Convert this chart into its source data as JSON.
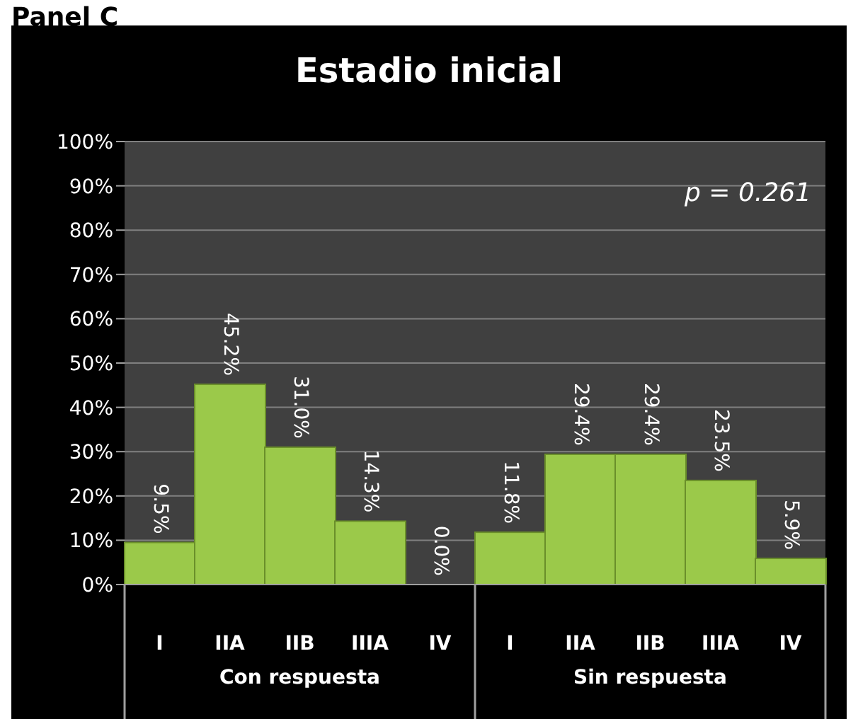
{
  "chart_data": {
    "type": "bar",
    "title": "Estadio inicial",
    "categories": [
      "I",
      "IIA",
      "IIB",
      "IIIA",
      "IV",
      "I",
      "IIA",
      "IIB",
      "IIIA",
      "IV"
    ],
    "values": [
      9.5,
      45.2,
      31.0,
      14.3,
      0.0,
      11.8,
      29.4,
      29.4,
      23.5,
      5.9
    ],
    "value_labels": [
      "9.5%",
      "45.2%",
      "31.0%",
      "14.3%",
      "0.0%",
      "11.8%",
      "29.4%",
      "29.4%",
      "23.5%",
      "5.9%"
    ],
    "color": "#9bc94a",
    "ylim": [
      0,
      100
    ],
    "yticks": [
      {
        "value": 0,
        "label": "0%"
      },
      {
        "value": 10,
        "label": "10%"
      },
      {
        "value": 20,
        "label": "20%"
      },
      {
        "value": 30,
        "label": "30%"
      },
      {
        "value": 40,
        "label": "40%"
      },
      {
        "value": 50,
        "label": "50%"
      },
      {
        "value": 60,
        "label": "60%"
      },
      {
        "value": 70,
        "label": "70%"
      },
      {
        "value": 80,
        "label": "80%"
      },
      {
        "value": 90,
        "label": "90%"
      },
      {
        "value": 100,
        "label": "100%"
      }
    ],
    "grid": "y",
    "annotations": [
      "Panel C",
      "p = 0.261",
      "Con respuesta",
      "Sin respuesta"
    ]
  }
}
